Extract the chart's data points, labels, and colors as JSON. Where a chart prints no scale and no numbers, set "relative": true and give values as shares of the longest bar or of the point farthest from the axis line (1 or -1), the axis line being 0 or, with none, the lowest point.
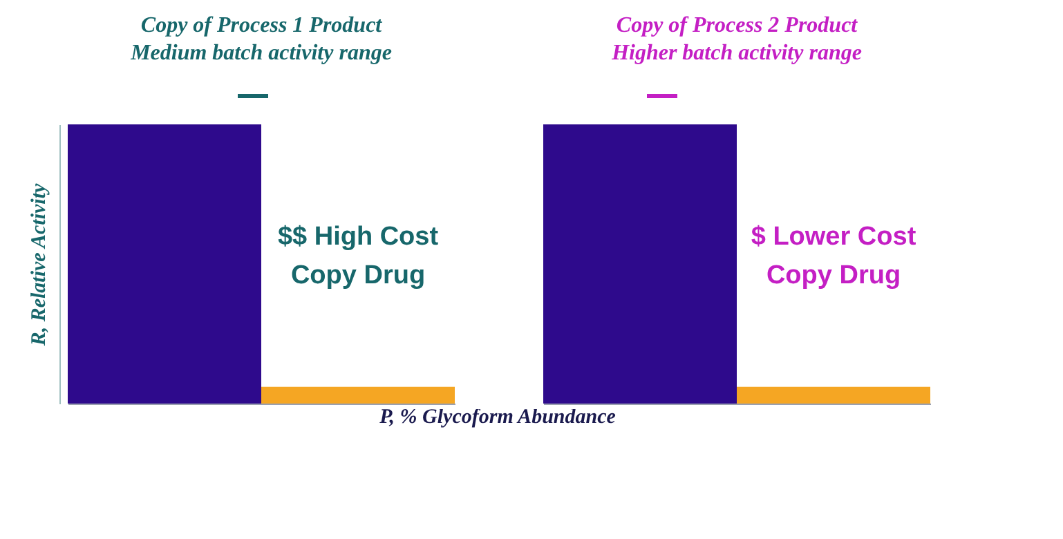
{
  "chart_data": [
    {
      "type": "bar",
      "title": "Copy of Process 1 Product",
      "subtitle": "Medium batch activity range",
      "ylabel": "R, Relative Activity",
      "xlabel": "P, % Glycoform Abundance",
      "relative": true,
      "categories": [
        null,
        null
      ],
      "values": [
        1,
        0.06
      ],
      "colors": [
        "#2e0a8c",
        "#f5a623"
      ],
      "annotations": [
        "$$ High Cost\nCopy Drug"
      ],
      "tick_labels": false
    },
    {
      "type": "bar",
      "title": "Copy of Process 2 Product",
      "subtitle": "Higher batch activity range",
      "relative": true,
      "categories": [
        null,
        null
      ],
      "values": [
        1,
        0.06
      ],
      "colors": [
        "#2e0a8c",
        "#f5a623"
      ],
      "annotations": [
        "$ Lower Cost\nCopy Drug"
      ],
      "tick_labels": false
    }
  ]
}
